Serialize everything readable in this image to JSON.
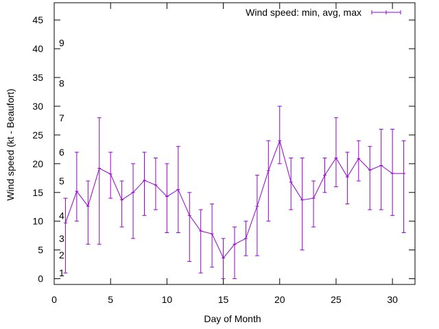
{
  "chart_data": {
    "type": "line",
    "title": "",
    "xlabel": "Day of Month",
    "ylabel": "Wind speed (kt - Beaufort)",
    "xlim": [
      0,
      32
    ],
    "ylim": [
      -1,
      48
    ],
    "xticks": [
      0,
      5,
      10,
      15,
      20,
      25,
      30
    ],
    "yticks": [
      0,
      5,
      10,
      15,
      20,
      25,
      30,
      35,
      40,
      45
    ],
    "grid": false,
    "legend_position": "top-right",
    "beaufort_labels": [
      {
        "label": "1",
        "value": 1.0
      },
      {
        "label": "2",
        "value": 4.1
      },
      {
        "label": "3",
        "value": 7.0
      },
      {
        "label": "4",
        "value": 11.0
      },
      {
        "label": "5",
        "value": 17.0
      },
      {
        "label": "6",
        "value": 22.0
      },
      {
        "label": "7",
        "value": 28.0
      },
      {
        "label": "8",
        "value": 34.0
      },
      {
        "label": "9",
        "value": 41.0
      }
    ],
    "series": [
      {
        "name": "Wind speed: min, avg, max",
        "color": "#9400d3",
        "x": [
          1,
          2,
          3,
          4,
          5,
          6,
          7,
          8,
          9,
          10,
          11,
          12,
          13,
          14,
          15,
          16,
          17,
          18,
          19,
          20,
          21,
          22,
          23,
          24,
          25,
          26,
          27,
          28,
          29,
          30,
          31
        ],
        "avg": [
          9.7,
          15.2,
          12.6,
          19.2,
          18.2,
          13.7,
          15.0,
          17.1,
          16.3,
          14.3,
          15.5,
          11.0,
          8.3,
          7.8,
          3.6,
          6.0,
          7.0,
          12.6,
          18.8,
          24.0,
          16.8,
          13.7,
          14.0,
          18.0,
          21.0,
          17.7,
          20.9,
          18.9,
          19.7,
          18.3,
          18.3
        ],
        "min": [
          1,
          10,
          6,
          6,
          14,
          9,
          7,
          11,
          12,
          8,
          8,
          3,
          1,
          2,
          0,
          0,
          4,
          4,
          10,
          20,
          12,
          5,
          9,
          15,
          16,
          13,
          17,
          12,
          12,
          11,
          8
        ],
        "max": [
          14,
          22,
          17,
          28,
          22,
          17,
          20,
          22,
          21,
          20,
          23,
          15,
          12,
          13,
          7,
          9,
          10,
          18,
          24,
          30,
          21,
          21,
          17,
          21,
          28,
          22,
          24,
          23,
          26,
          26,
          24
        ]
      }
    ]
  }
}
